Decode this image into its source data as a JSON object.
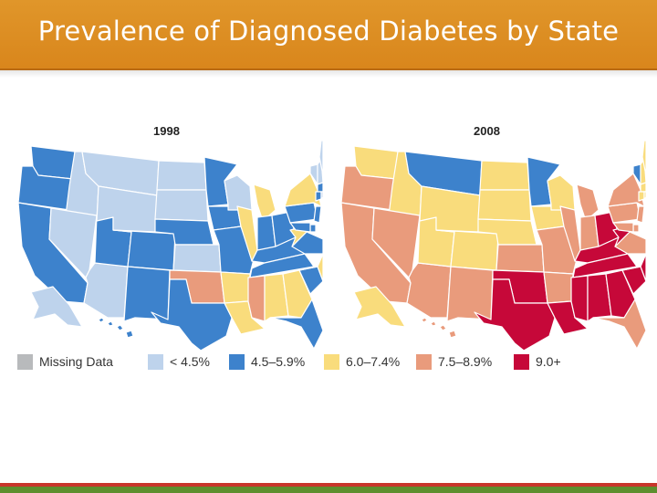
{
  "header": {
    "title": "Prevalence of Diagnosed Diabetes by State"
  },
  "maps": [
    {
      "year_label": "1998",
      "year": 1998,
      "states": {
        "WA": "c2",
        "OR": "c2",
        "CA": "c2",
        "ID": "c1",
        "NV": "c1",
        "AZ": "c1",
        "UT": "c2",
        "MT": "c1",
        "WY": "c1",
        "CO": "c2",
        "NM": "c2",
        "ND": "c1",
        "SD": "c1",
        "NE": "c2",
        "KS": "c1",
        "OK": "c4",
        "TX": "c2",
        "MN": "c2",
        "IA": "c2",
        "MO": "c2",
        "AR": "c3",
        "LA": "c3",
        "WI": "c1",
        "IL": "c3",
        "MI": "c3",
        "IN": "c2",
        "OH": "c2",
        "KY": "c2",
        "TN": "c2",
        "MS": "c4",
        "AL": "c3",
        "GA": "c3",
        "FL": "c2",
        "SC": "c2",
        "NC": "c3",
        "VA": "c2",
        "WV": "c3",
        "PA": "c2",
        "NY": "c3",
        "VT": "c1",
        "NH": "c1",
        "ME": "c1",
        "MA": "c2",
        "CT": "c2",
        "RI": "c1",
        "NJ": "c2",
        "DE": "c2",
        "MD": "c2",
        "AK": "c1",
        "HI": "c2"
      }
    },
    {
      "year_label": "2008",
      "year": 2008,
      "states": {
        "WA": "c3",
        "OR": "c4",
        "CA": "c4",
        "ID": "c3",
        "NV": "c4",
        "AZ": "c4",
        "UT": "c3",
        "MT": "c2",
        "WY": "c3",
        "CO": "c3",
        "NM": "c4",
        "ND": "c3",
        "SD": "c3",
        "NE": "c3",
        "KS": "c4",
        "OK": "c5",
        "TX": "c5",
        "MN": "c2",
        "IA": "c3",
        "MO": "c4",
        "AR": "c4",
        "LA": "c5",
        "WI": "c3",
        "IL": "c4",
        "MI": "c4",
        "IN": "c4",
        "OH": "c5",
        "KY": "c5",
        "TN": "c5",
        "MS": "c5",
        "AL": "c5",
        "GA": "c5",
        "FL": "c4",
        "SC": "c5",
        "NC": "c5",
        "VA": "c4",
        "WV": "c5",
        "PA": "c4",
        "NY": "c4",
        "VT": "c2",
        "NH": "c3",
        "ME": "c3",
        "MA": "c3",
        "CT": "c3",
        "RI": "c3",
        "NJ": "c4",
        "DE": "c4",
        "MD": "c4",
        "AK": "c3",
        "HI": "c4"
      }
    }
  ],
  "legend": [
    {
      "key": "c0",
      "label": "Missing Data",
      "color": "#b8babc"
    },
    {
      "key": "c1",
      "label": "< 4.5%",
      "color": "#bed3ec"
    },
    {
      "key": "c2",
      "label": "4.5–5.9%",
      "color": "#3d82cc"
    },
    {
      "key": "c3",
      "label": "6.0–7.4%",
      "color": "#f9dc7c"
    },
    {
      "key": "c4",
      "label": "7.5–8.9%",
      "color": "#e99b7c"
    },
    {
      "key": "c5",
      "label": "9.0+",
      "color": "#c60839"
    }
  ],
  "colors": {
    "header": "#dc8c22",
    "stroke": "#ffffff",
    "footer_red": "#c8352b",
    "footer_green": "#5d8f2e"
  }
}
